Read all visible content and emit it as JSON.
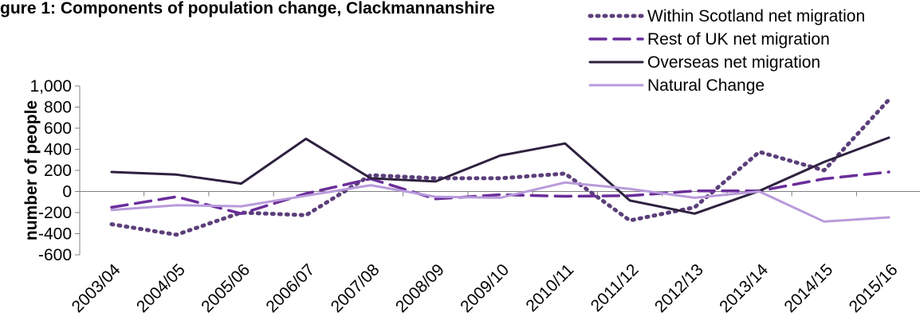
{
  "title": "gure 1: Components of population change, Clackmannanshire",
  "chart_data": {
    "type": "line",
    "title": "gure 1: Components of population change, Clackmannanshire",
    "xlabel": "",
    "ylabel": "number of people",
    "ylim": [
      -600,
      1000
    ],
    "yticks": [
      1000,
      800,
      600,
      400,
      200,
      0,
      -200,
      -400,
      -600
    ],
    "ytick_labels": [
      "1,000",
      "800",
      "600",
      "400",
      "200",
      "0",
      "-200",
      "-400",
      "-600"
    ],
    "categories": [
      "2003/04",
      "2004/05",
      "2005/06",
      "2006/07",
      "2007/08",
      "2008/09",
      "2009/10",
      "2010/11",
      "2011/12",
      "2012/13",
      "2013/14",
      "2014/15",
      "2015/16"
    ],
    "grid": false,
    "legend_position": "top-right",
    "series": [
      {
        "name": "Within Scotland net migration",
        "color": "#5B3F7A",
        "style": "dotted",
        "values": [
          -310,
          -410,
          -200,
          -225,
          155,
          125,
          125,
          170,
          -275,
          -150,
          375,
          200,
          870
        ]
      },
      {
        "name": "Rest of UK net migration",
        "color": "#6A2D9A",
        "style": "dashed",
        "values": [
          -150,
          -50,
          -210,
          -20,
          120,
          -70,
          -30,
          -45,
          -40,
          5,
          5,
          120,
          185
        ]
      },
      {
        "name": "Overseas net migration",
        "color": "#2E213F",
        "style": "solid",
        "values": [
          185,
          160,
          75,
          500,
          125,
          95,
          340,
          455,
          -85,
          -210,
          5,
          280,
          510
        ]
      },
      {
        "name": "Natural Change",
        "color": "#B99BDB",
        "style": "solid",
        "values": [
          -175,
          -130,
          -140,
          -40,
          60,
          -50,
          -60,
          85,
          25,
          -60,
          0,
          -285,
          -245
        ]
      }
    ]
  }
}
